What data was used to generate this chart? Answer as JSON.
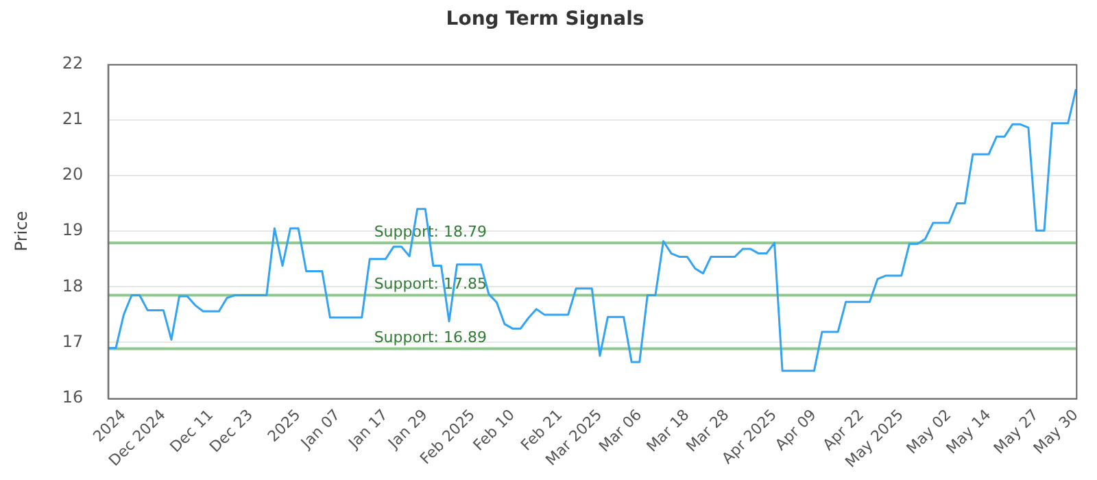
{
  "chart_data": {
    "type": "line",
    "title": "Long Term Signals",
    "ylabel": "Price",
    "categories": [
      null,
      null,
      "2024",
      null,
      null,
      null,
      null,
      "Dec 2024",
      null,
      null,
      null,
      null,
      null,
      "Dec 11",
      null,
      null,
      null,
      null,
      "Dec 23",
      null,
      null,
      null,
      null,
      null,
      "2025",
      null,
      null,
      null,
      null,
      "Jan 07",
      null,
      null,
      null,
      null,
      null,
      "Jan 17",
      null,
      null,
      null,
      null,
      "Jan 29",
      null,
      null,
      null,
      null,
      null,
      "Feb 2025",
      null,
      null,
      null,
      null,
      "Feb 10",
      null,
      null,
      null,
      null,
      null,
      "Feb 21",
      null,
      null,
      null,
      null,
      "Mar 2025",
      null,
      null,
      null,
      null,
      "Mar 06",
      null,
      null,
      null,
      null,
      null,
      "Mar 18",
      null,
      null,
      null,
      null,
      "Mar 28",
      null,
      null,
      null,
      null,
      null,
      "Apr 2025",
      null,
      null,
      null,
      null,
      "Apr 09",
      null,
      null,
      null,
      null,
      null,
      "Apr 22",
      null,
      null,
      null,
      null,
      "May 2025",
      null,
      null,
      null,
      null,
      null,
      "May 02",
      null,
      null,
      null,
      null,
      "May 14",
      null,
      null,
      null,
      null,
      null,
      "May 27",
      null,
      null,
      null,
      null,
      "May 30"
    ],
    "series": [
      {
        "color": "#33a3f4",
        "values": [
          16.9,
          16.9,
          17.5,
          17.85,
          17.85,
          17.58,
          17.58,
          17.58,
          17.05,
          17.83,
          17.83,
          17.67,
          17.56,
          17.56,
          17.56,
          17.8,
          17.85,
          17.85,
          17.85,
          17.85,
          17.85,
          19.05,
          18.38,
          19.05,
          19.05,
          18.28,
          18.28,
          18.28,
          17.45,
          17.45,
          17.45,
          17.45,
          17.45,
          18.5,
          18.5,
          18.5,
          18.72,
          18.72,
          18.55,
          19.4,
          19.4,
          18.38,
          18.38,
          17.38,
          18.4,
          18.4,
          18.4,
          18.4,
          17.87,
          17.72,
          17.33,
          17.25,
          17.25,
          17.44,
          17.6,
          17.5,
          17.5,
          17.5,
          17.5,
          17.97,
          17.97,
          17.97,
          16.76,
          17.46,
          17.46,
          17.46,
          16.65,
          16.65,
          17.85,
          17.85,
          18.82,
          18.6,
          18.54,
          18.54,
          18.33,
          18.24,
          18.54,
          18.54,
          18.54,
          18.54,
          18.68,
          18.68,
          18.6,
          18.6,
          18.79,
          16.49,
          16.49,
          16.49,
          16.49,
          16.49,
          17.19,
          17.19,
          17.19,
          17.73,
          17.73,
          17.73,
          17.73,
          18.14,
          18.2,
          18.2,
          18.2,
          18.77,
          18.77,
          18.86,
          19.15,
          19.15,
          19.15,
          19.5,
          19.5,
          20.38,
          20.38,
          20.38,
          20.7,
          20.7,
          20.92,
          20.92,
          20.86,
          19.01,
          19.01,
          20.94,
          20.94,
          20.94,
          21.55
        ]
      }
    ],
    "ylim": [
      16,
      22
    ],
    "yticks": [
      16,
      17,
      18,
      19,
      20,
      21,
      22
    ],
    "grid": "y",
    "legend": false,
    "marker": "none",
    "line_style": "solid",
    "ref_lines": [
      {
        "axis": "y",
        "value": 18.79,
        "label": "Support: 18.79",
        "color": "#8cc98a"
      },
      {
        "axis": "y",
        "value": 17.85,
        "label": "Support: 17.85",
        "color": "#8cc98a"
      },
      {
        "axis": "y",
        "value": 16.89,
        "label": "Support: 16.89",
        "color": "#8cc98a"
      }
    ]
  }
}
